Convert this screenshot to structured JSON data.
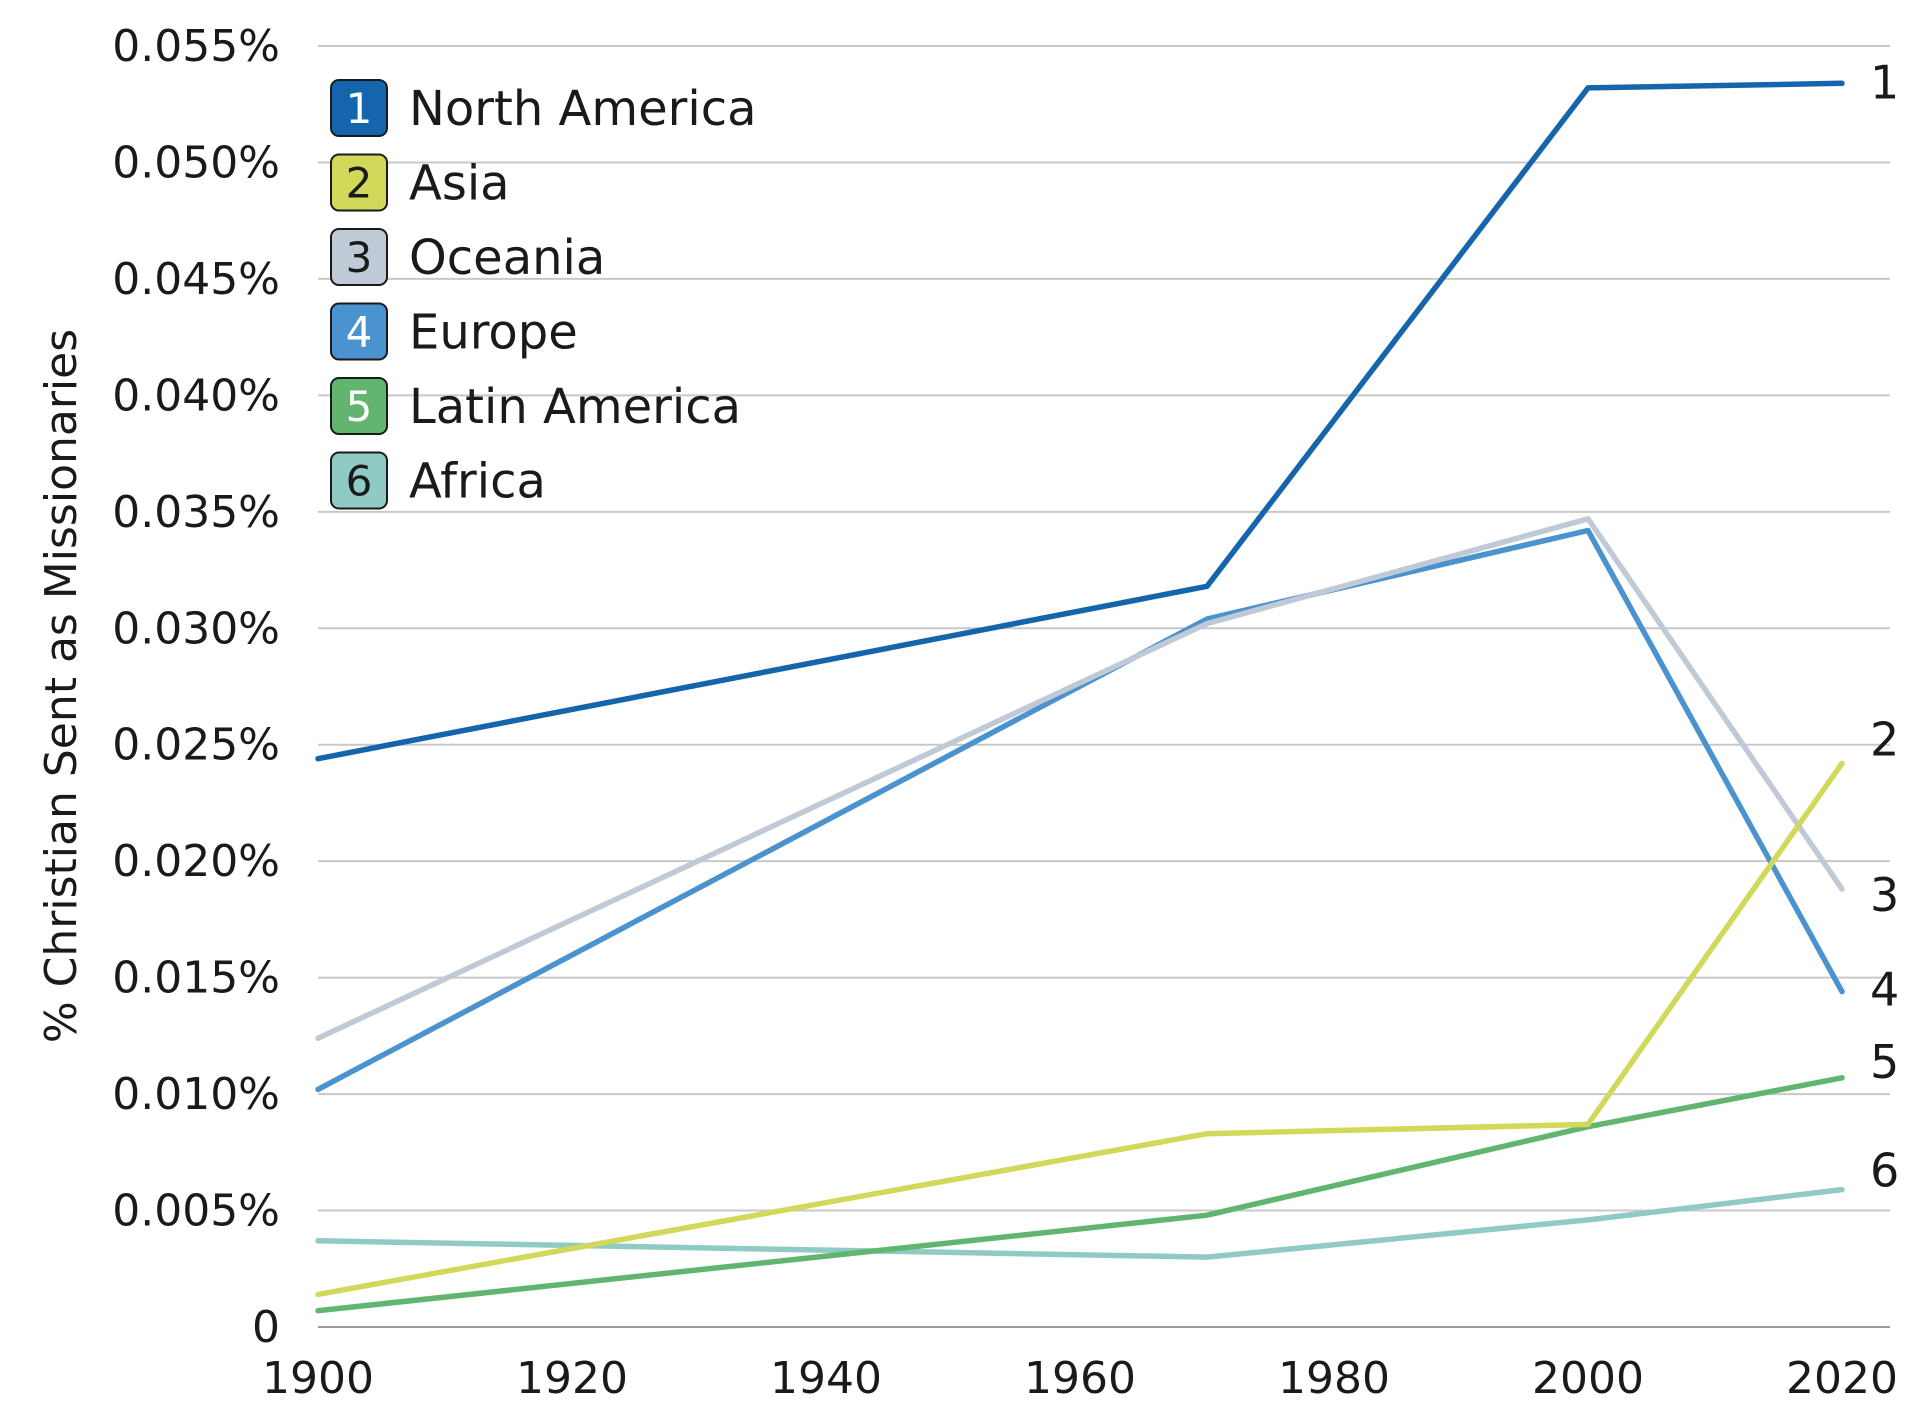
{
  "chart_data": {
    "type": "line",
    "title": "",
    "xlabel": "",
    "ylabel": "% Christian Sent as Missionaries",
    "x": [
      1900,
      1970,
      2000,
      2020
    ],
    "xlim": [
      1900,
      2025
    ],
    "ylim": [
      0,
      0.055
    ],
    "grid": true,
    "legend_position": "top-left",
    "x_ticks": [
      {
        "value": 1900,
        "label": "1900"
      },
      {
        "value": 1920,
        "label": "1920"
      },
      {
        "value": 1940,
        "label": "1940"
      },
      {
        "value": 1960,
        "label": "1960"
      },
      {
        "value": 1980,
        "label": "1980"
      },
      {
        "value": 2000,
        "label": "2000"
      },
      {
        "value": 2020,
        "label": "2020"
      }
    ],
    "y_ticks": [
      {
        "value": 0,
        "label": "0"
      },
      {
        "value": 0.005,
        "label": "0.005%"
      },
      {
        "value": 0.01,
        "label": "0.010%"
      },
      {
        "value": 0.015,
        "label": "0.015%"
      },
      {
        "value": 0.02,
        "label": "0.020%"
      },
      {
        "value": 0.025,
        "label": "0.025%"
      },
      {
        "value": 0.03,
        "label": "0.030%"
      },
      {
        "value": 0.035,
        "label": "0.035%"
      },
      {
        "value": 0.04,
        "label": "0.040%"
      },
      {
        "value": 0.045,
        "label": "0.045%"
      },
      {
        "value": 0.05,
        "label": "0.050%"
      },
      {
        "value": 0.055,
        "label": "0.055%"
      }
    ],
    "series": [
      {
        "key": "north-america",
        "number": "1",
        "name": "North America",
        "color": "#1565ad",
        "num_color": "#ffffff",
        "points": [
          [
            1900,
            0.0244
          ],
          [
            1970,
            0.0318
          ],
          [
            2000,
            0.0532
          ],
          [
            2020,
            0.0534
          ]
        ]
      },
      {
        "key": "asia",
        "number": "2",
        "name": "Asia",
        "color": "#d2d85a",
        "num_color": "#1a1a1a",
        "points": [
          [
            1900,
            0.0014
          ],
          [
            1970,
            0.0083
          ],
          [
            2000,
            0.0087
          ],
          [
            2020,
            0.0242
          ]
        ]
      },
      {
        "key": "oceania",
        "number": "3",
        "name": "Oceania",
        "color": "#bfcad6",
        "num_color": "#1a1a1a",
        "points": [
          [
            1900,
            0.0124
          ],
          [
            1970,
            0.0302
          ],
          [
            2000,
            0.0347
          ],
          [
            2020,
            0.0188
          ]
        ]
      },
      {
        "key": "europe",
        "number": "4",
        "name": "Europe",
        "color": "#4a93cf",
        "num_color": "#ffffff",
        "points": [
          [
            1900,
            0.0102
          ],
          [
            1970,
            0.0304
          ],
          [
            2000,
            0.0342
          ],
          [
            2020,
            0.0144
          ]
        ]
      },
      {
        "key": "latin-america",
        "number": "5",
        "name": "Latin America",
        "color": "#62b56f",
        "num_color": "#ffffff",
        "points": [
          [
            1900,
            0.0007
          ],
          [
            1970,
            0.0048
          ],
          [
            2000,
            0.0086
          ],
          [
            2020,
            0.0107
          ]
        ]
      },
      {
        "key": "africa",
        "number": "6",
        "name": "Africa",
        "color": "#8fcbc4",
        "num_color": "#1a1a1a",
        "points": [
          [
            1900,
            0.0037
          ],
          [
            1970,
            0.003
          ],
          [
            2000,
            0.0046
          ],
          [
            2020,
            0.0059
          ]
        ]
      }
    ]
  }
}
